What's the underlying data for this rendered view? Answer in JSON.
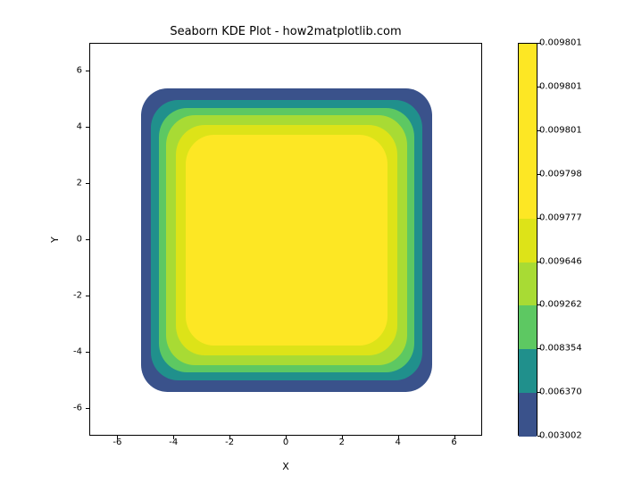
{
  "title": "Seaborn KDE Plot - how2matplotlib.com",
  "xlabel": "X",
  "ylabel": "Y",
  "plot": {
    "type": "kde-contour-filled",
    "xlim": [
      -7,
      7
    ],
    "ylim": [
      -7,
      7
    ],
    "xticks": [
      -6,
      -4,
      -2,
      0,
      2,
      4,
      6
    ],
    "yticks": [
      -6,
      -4,
      -2,
      0,
      2,
      4,
      6
    ],
    "background_color": "#ffffff",
    "border_color": "#000000",
    "tick_fontsize": 10,
    "label_fontsize": 11,
    "title_fontsize": 13,
    "contours": [
      {
        "extent": [
          -5.2,
          5.2,
          -5.4,
          5.4
        ],
        "color": "#3a528b",
        "corner_radius_pct": 9
      },
      {
        "extent": [
          -4.85,
          4.85,
          -5.0,
          5.0
        ],
        "color": "#20908c",
        "corner_radius_pct": 10
      },
      {
        "extent": [
          -4.55,
          4.55,
          -4.7,
          4.7
        ],
        "color": "#5dc862",
        "corner_radius_pct": 11
      },
      {
        "extent": [
          -4.3,
          4.3,
          -4.45,
          4.45
        ],
        "color": "#a8db34",
        "corner_radius_pct": 12
      },
      {
        "extent": [
          -3.95,
          3.95,
          -4.1,
          4.1
        ],
        "color": "#dde318",
        "corner_radius_pct": 13
      },
      {
        "extent": [
          -3.6,
          3.6,
          -3.75,
          3.75
        ],
        "color": "#fde724",
        "corner_radius_pct": 14
      }
    ]
  },
  "colorbar": {
    "segments": [
      {
        "color": "#3a528b",
        "from": 0.0,
        "to": 0.111
      },
      {
        "color": "#20908c",
        "from": 0.111,
        "to": 0.222
      },
      {
        "color": "#5dc862",
        "from": 0.222,
        "to": 0.333
      },
      {
        "color": "#a8db34",
        "from": 0.333,
        "to": 0.444
      },
      {
        "color": "#dde318",
        "from": 0.444,
        "to": 0.555
      },
      {
        "color": "#fde724",
        "from": 0.555,
        "to": 1.0
      }
    ],
    "ticks": [
      {
        "pos": 0.0,
        "label": "0.003002"
      },
      {
        "pos": 0.111,
        "label": "0.006370"
      },
      {
        "pos": 0.222,
        "label": "0.008354"
      },
      {
        "pos": 0.333,
        "label": "0.009262"
      },
      {
        "pos": 0.444,
        "label": "0.009646"
      },
      {
        "pos": 0.555,
        "label": "0.009777"
      },
      {
        "pos": 0.666,
        "label": "0.009798"
      },
      {
        "pos": 0.777,
        "label": "0.009801"
      },
      {
        "pos": 0.888,
        "label": "0.009801"
      },
      {
        "pos": 1.0,
        "label": "0.009801"
      }
    ]
  }
}
